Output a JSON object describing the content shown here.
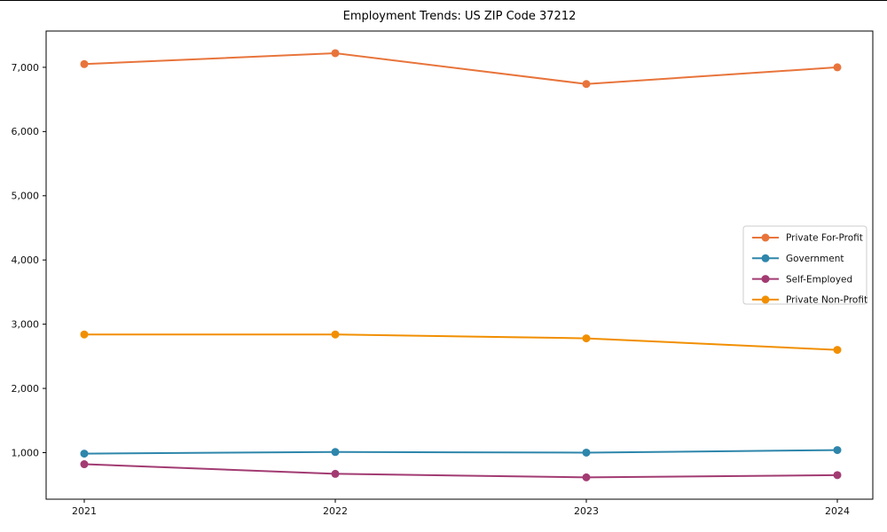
{
  "chart_data": {
    "type": "line",
    "title": "Employment Trends: US ZIP Code 37212",
    "xlabel": "",
    "ylabel": "",
    "x": [
      2021,
      2022,
      2023,
      2024
    ],
    "xtick_labels": [
      "2021",
      "2022",
      "2023",
      "2024"
    ],
    "series": [
      {
        "name": "Private For-Profit",
        "color": "#E8743B",
        "values": [
          7050,
          7220,
          6740,
          7000
        ]
      },
      {
        "name": "Government",
        "color": "#2E86AB",
        "values": [
          985,
          1010,
          1000,
          1040
        ]
      },
      {
        "name": "Self-Employed",
        "color": "#A23B72",
        "values": [
          820,
          670,
          615,
          650
        ]
      },
      {
        "name": "Private Non-Profit",
        "color": "#F18F01",
        "values": [
          2840,
          2840,
          2780,
          2600
        ]
      }
    ],
    "yticks": [
      1000,
      2000,
      3000,
      4000,
      5000,
      6000,
      7000
    ],
    "ytick_labels": [
      "1,000",
      "2,000",
      "3,000",
      "4,000",
      "5,000",
      "6,000",
      "7,000"
    ],
    "ylim": [
      275,
      7565
    ],
    "grid": false,
    "legend_position": "center right",
    "frame_color": "#000000",
    "legend_border_color": "#cccccc",
    "marker": "circle"
  }
}
